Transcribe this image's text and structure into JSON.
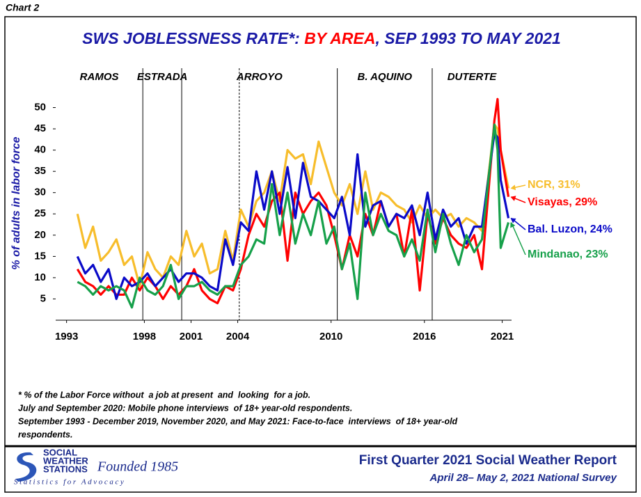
{
  "chart_label": "Chart 2",
  "chart_data": {
    "type": "line",
    "title_parts": [
      {
        "text": "SWS JOBLESSNESS RATE*: ",
        "color": "#1a1aa6"
      },
      {
        "text": "BY AREA",
        "color": "#ff0000"
      },
      {
        "text": ", SEP 1993 TO MAY 2021",
        "color": "#1a1aa6"
      }
    ],
    "y_label": "% of adults in labor force",
    "administrations": [
      "RAMOS",
      "ESTRADA",
      "ARROYO",
      "B. AQUINO",
      "DUTERTE"
    ],
    "dividers": [
      1997.9,
      2000.4,
      2010.4,
      2016.5
    ],
    "dashed_dividers": [
      2004.1
    ],
    "xlim": [
      1992.3,
      2021.6
    ],
    "xticks": [
      1993,
      1998,
      2001,
      2004,
      2010,
      2016,
      2021
    ],
    "ylim": [
      0,
      55
    ],
    "yticks": [
      5,
      10,
      15,
      20,
      25,
      30,
      35,
      40,
      45,
      50
    ],
    "x": [
      1993.7,
      1994.2,
      1994.7,
      1995.2,
      1995.7,
      1996.2,
      1996.7,
      1997.2,
      1997.7,
      1998.2,
      1998.7,
      1999.2,
      1999.7,
      2000.2,
      2000.7,
      2001.2,
      2001.7,
      2002.2,
      2002.7,
      2003.2,
      2003.7,
      2004.2,
      2004.7,
      2005.2,
      2005.7,
      2006.2,
      2006.7,
      2007.2,
      2007.7,
      2008.2,
      2008.7,
      2009.2,
      2009.7,
      2010.2,
      2010.7,
      2011.2,
      2011.7,
      2012.2,
      2012.7,
      2013.2,
      2013.7,
      2014.2,
      2014.7,
      2015.2,
      2015.7,
      2016.2,
      2016.7,
      2017.2,
      2017.7,
      2018.2,
      2018.7,
      2019.2,
      2019.7,
      2020.5,
      2020.7,
      2020.9,
      2021.4
    ],
    "series": [
      {
        "name": "NCR",
        "end_label": "NCR, 31%",
        "color": "#f7bd2b",
        "values": [
          25,
          17,
          22,
          14,
          16,
          19,
          13,
          15,
          8,
          16,
          12,
          10,
          15,
          13,
          21,
          15,
          18,
          11,
          12,
          21,
          14,
          26,
          22,
          28,
          30,
          35,
          28,
          40,
          38,
          39,
          32,
          42,
          36,
          30,
          27,
          32,
          25,
          35,
          26,
          30,
          29,
          27,
          26,
          23,
          27,
          24,
          26,
          24,
          25,
          22,
          24,
          23,
          21,
          46,
          45,
          40,
          31
        ]
      },
      {
        "name": "Visayas",
        "end_label": "Visayas, 29%",
        "color": "#ff0000",
        "values": [
          12,
          9,
          8,
          6,
          8,
          6,
          6,
          10,
          7,
          10,
          8,
          5,
          8,
          6,
          8,
          12,
          7,
          5,
          4,
          8,
          7,
          12,
          20,
          25,
          22,
          28,
          30,
          14,
          30,
          25,
          28,
          30,
          27,
          20,
          12,
          20,
          15,
          25,
          20,
          28,
          22,
          25,
          15,
          26,
          7,
          25,
          18,
          24,
          20,
          18,
          17,
          20,
          12,
          47,
          52,
          40,
          29
        ]
      },
      {
        "name": "Bal. Luzon",
        "end_label": "Bal. Luzon, 24%",
        "color": "#0a0ac8",
        "values": [
          15,
          11,
          13,
          9,
          12,
          5,
          10,
          8,
          9,
          11,
          8,
          10,
          12,
          9,
          11,
          11,
          10,
          8,
          7,
          19,
          13,
          23,
          21,
          35,
          26,
          35,
          25,
          36,
          24,
          37,
          29,
          28,
          26,
          24,
          29,
          20,
          39,
          22,
          27,
          28,
          22,
          25,
          24,
          27,
          20,
          30,
          19,
          26,
          22,
          24,
          18,
          22,
          22,
          44,
          43,
          33,
          24
        ]
      },
      {
        "name": "Mindanao",
        "end_label": "Mindanao, 23%",
        "color": "#16a04a",
        "values": [
          9,
          8,
          6,
          8,
          7,
          8,
          7,
          3,
          10,
          7,
          6,
          8,
          13,
          5,
          8,
          8,
          9,
          7,
          6,
          8,
          8,
          13,
          15,
          19,
          18,
          32,
          20,
          30,
          18,
          25,
          20,
          28,
          18,
          22,
          12,
          18,
          5,
          30,
          20,
          25,
          21,
          20,
          15,
          19,
          14,
          26,
          16,
          25,
          18,
          13,
          20,
          16,
          19,
          46,
          40,
          17,
          23
        ]
      }
    ]
  },
  "footnotes": [
    "* % of the Labor Force without  a job at present  and  looking  for a job.",
    "July and September 2020: Mobile phone interviews  of 18+ year-old respondents.",
    "September 1993 - December 2019, November 2020, and May 2021: Face-to-face  interviews  of 18+ year-old",
    "respondents."
  ],
  "logo": {
    "line1": "SOCIAL",
    "line2": "WEATHER",
    "line3": "STATIONS",
    "founded": "Founded 1985",
    "tagline": "Statistics for Advocacy"
  },
  "footer": {
    "title": "First Quarter 2021 Social Weather Report",
    "subtitle": "April 28– May 2, 2021 National Survey"
  }
}
